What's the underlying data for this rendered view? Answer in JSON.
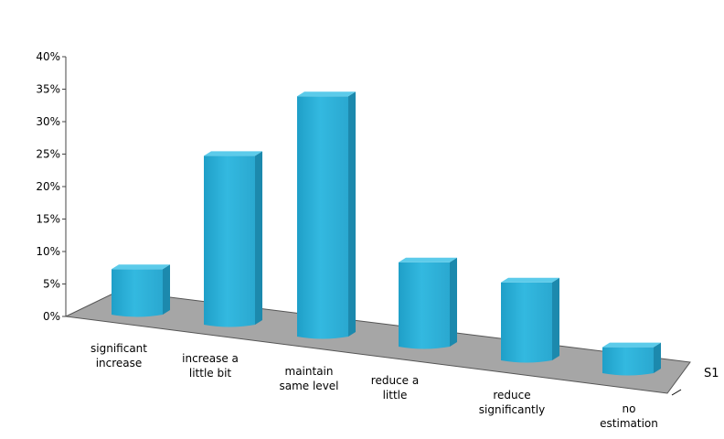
{
  "chart_data": {
    "type": "bar",
    "style": "3d-column",
    "title": "",
    "xlabel": "",
    "ylabel": "",
    "ylim": [
      0,
      40
    ],
    "y_ticks": [
      "0%",
      "5%",
      "10%",
      "15%",
      "20%",
      "25%",
      "30%",
      "35%",
      "40%"
    ],
    "categories": [
      "significant increase",
      "increase a little bit",
      "maintain same level",
      "reduce a little",
      "reduce significantly",
      "no estimation"
    ],
    "category_lines": [
      [
        "significant",
        "increase"
      ],
      [
        "increase a",
        "little bit"
      ],
      [
        "maintain",
        "same level"
      ],
      [
        "reduce a",
        "little"
      ],
      [
        "reduce",
        "significantly"
      ],
      [
        "no",
        "estimation"
      ]
    ],
    "series": [
      {
        "name": "S1",
        "values": [
          7,
          26,
          37,
          13,
          12,
          4
        ]
      }
    ],
    "value_unit": "%",
    "grid": false,
    "legend": "none",
    "colors": {
      "bar_front": "#2aaed6",
      "bar_side": "#1c89ad",
      "bar_top": "#5ccbea",
      "floor": "#a6a6a6"
    }
  }
}
